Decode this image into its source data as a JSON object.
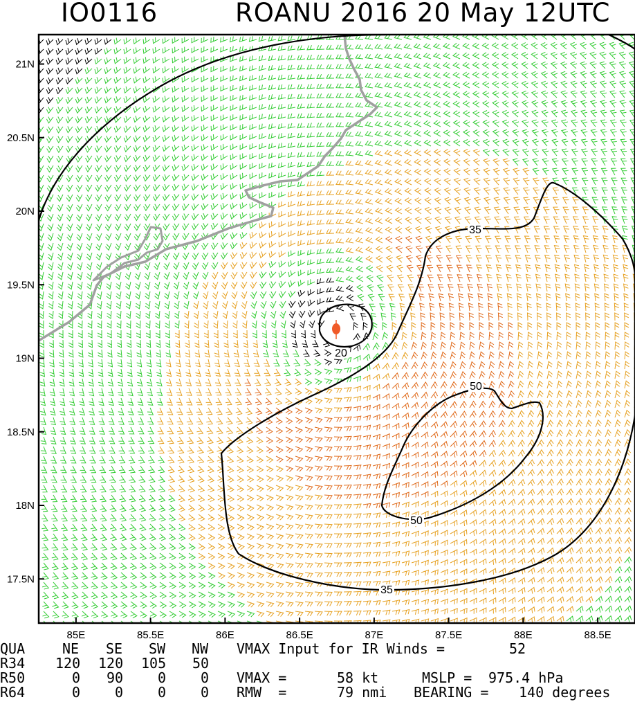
{
  "header": {
    "left_title": "IO0116",
    "right_title": "ROANU 2016 20 May 12UTC"
  },
  "colors": {
    "barb_tropical": "#33cc33",
    "barb_gale": "#e6a020",
    "barb_storm": "#e06a1a",
    "barb_light": "#000000",
    "coastline": "#a0a0a0",
    "contour": "#000000",
    "center_marker": "#f05a28"
  },
  "chart_data": {
    "type": "wind barb map",
    "x_ticks": [
      "85E",
      "85.5E",
      "86E",
      "86.5E",
      "87E",
      "87.5E",
      "88E",
      "88.5E"
    ],
    "y_ticks": [
      "17.5N",
      "18N",
      "18.5N",
      "19N",
      "19.5N",
      "20N",
      "20.5N",
      "21N"
    ],
    "xlim": [
      84.75,
      88.75
    ],
    "ylim": [
      17.2,
      21.2
    ],
    "storm_center": {
      "lon": 86.75,
      "lat": 19.2
    },
    "contours": [
      {
        "label": "20",
        "label_lon": 86.72,
        "label_lat": 19.05
      },
      {
        "label": "35",
        "label_lon": 86.93,
        "label_lat": 19.9
      },
      {
        "label": "35",
        "label_lon": 86.86,
        "label_lat": 17.44
      },
      {
        "label": "50",
        "label_lon": 87.66,
        "label_lat": 18.81
      },
      {
        "label": "50",
        "label_lon": 87.27,
        "label_lat": 17.94
      }
    ]
  },
  "info_table": {
    "qua_label": "QUA",
    "quadrants": [
      "NE",
      "SE",
      "SW",
      "NW"
    ],
    "rows": [
      {
        "label": "R34",
        "values": [
          "120",
          "120",
          "105",
          "50"
        ]
      },
      {
        "label": "R50",
        "values": [
          "0",
          "90",
          "0",
          "0"
        ]
      },
      {
        "label": "R64",
        "values": [
          "0",
          "0",
          "0",
          "0"
        ]
      }
    ],
    "vmax_ir_text": "VMAX Input for IR Winds =",
    "vmax_ir_value": "52",
    "vmax_label": "VMAX =",
    "vmax_value": "58 kt",
    "mslp_label": "MSLP =",
    "mslp_value": "975.4 hPa",
    "rmw_label": "RMW  =",
    "rmw_value": "79 nmi",
    "bearing_label": "BEARING =",
    "bearing_value": "140 degrees"
  }
}
